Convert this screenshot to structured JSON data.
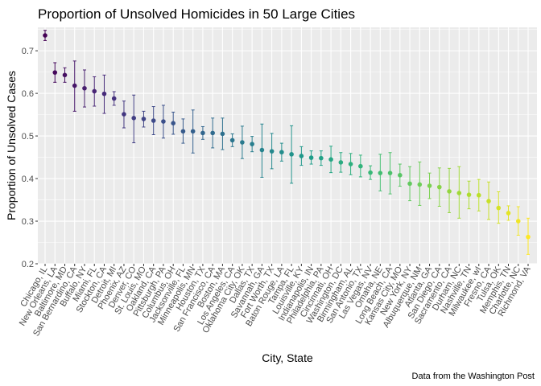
{
  "chart_data": {
    "type": "scatter",
    "title": "Proportion of Unsolved Homicides in 50 Large Cities",
    "xlabel": "City, State",
    "ylabel": "Proportion of Unsolved Cases",
    "caption": "Data from the Washington Post",
    "ylim": [
      0.2,
      0.755
    ],
    "yticks": [
      "0.2",
      "0.3",
      "0.4",
      "0.5",
      "0.6",
      "0.7"
    ],
    "grid": true,
    "color_scale": "viridis",
    "panel_background": "#ebebeb",
    "categories": [
      "Chicago, IL",
      "New Orleans, LA",
      "Baltimore, MD",
      "San Bernardino, CA",
      "Buffalo, NY",
      "Miami, FL",
      "Stockton, CA",
      "Detroit, MI",
      "Phoenix, AZ",
      "Denver, CO",
      "St. Louis, MO",
      "Oakland, CA",
      "Pittsburgh, PA",
      "Columbus, OH",
      "Jacksonville, FL",
      "Minneapolis, MN",
      "Houston, TX",
      "San Francisco, CA",
      "Boston, MA",
      "Los Angeles, CA",
      "Oklahoma City, OK",
      "Dallas, TX",
      "Savannah, GA",
      "Fort Worth, TX",
      "Baton Rouge, LA",
      "Tampa, FL",
      "Louisville, KY",
      "Indianapolis, IN",
      "Philadelphia, PA",
      "Cincinnati, OH",
      "Washington, DC",
      "Birmingham, AL",
      "San Antonio, TX",
      "Las Vegas, NV",
      "Omaha, NE",
      "Long Beach, CA",
      "Kansas City, MO",
      "New York, NY",
      "Albuquerque, NM",
      "Atlanta, GA",
      "San Diego, CA",
      "Sacramento, CA",
      "Durham, NC",
      "Nashville, TN",
      "Milwaukee, wI",
      "Fresno, CA",
      "Tulsa, OK",
      "Memphis, TN",
      "Charlotte, NC",
      "Richmond, VA"
    ],
    "estimate": [
      0.736,
      0.649,
      0.643,
      0.618,
      0.612,
      0.605,
      0.599,
      0.588,
      0.551,
      0.542,
      0.54,
      0.536,
      0.534,
      0.53,
      0.511,
      0.511,
      0.507,
      0.507,
      0.505,
      0.49,
      0.485,
      0.481,
      0.467,
      0.464,
      0.462,
      0.457,
      0.453,
      0.449,
      0.448,
      0.445,
      0.438,
      0.434,
      0.429,
      0.414,
      0.413,
      0.413,
      0.408,
      0.388,
      0.386,
      0.383,
      0.38,
      0.37,
      0.366,
      0.362,
      0.361,
      0.347,
      0.331,
      0.319,
      0.3,
      0.263
    ],
    "lower": [
      0.724,
      0.626,
      0.626,
      0.558,
      0.568,
      0.57,
      0.553,
      0.572,
      0.519,
      0.484,
      0.521,
      0.503,
      0.495,
      0.504,
      0.483,
      0.46,
      0.492,
      0.472,
      0.468,
      0.475,
      0.447,
      0.463,
      0.403,
      0.423,
      0.441,
      0.389,
      0.431,
      0.434,
      0.431,
      0.414,
      0.415,
      0.409,
      0.404,
      0.398,
      0.371,
      0.364,
      0.382,
      0.348,
      0.337,
      0.353,
      0.335,
      0.32,
      0.307,
      0.329,
      0.324,
      0.304,
      0.295,
      0.302,
      0.267,
      0.222
    ],
    "upper": [
      0.748,
      0.672,
      0.66,
      0.676,
      0.655,
      0.639,
      0.643,
      0.604,
      0.582,
      0.596,
      0.558,
      0.569,
      0.572,
      0.556,
      0.54,
      0.561,
      0.522,
      0.542,
      0.542,
      0.505,
      0.523,
      0.499,
      0.528,
      0.506,
      0.483,
      0.524,
      0.475,
      0.465,
      0.465,
      0.476,
      0.461,
      0.459,
      0.455,
      0.43,
      0.457,
      0.461,
      0.434,
      0.428,
      0.439,
      0.413,
      0.425,
      0.424,
      0.428,
      0.394,
      0.398,
      0.392,
      0.369,
      0.336,
      0.334,
      0.307
    ]
  }
}
